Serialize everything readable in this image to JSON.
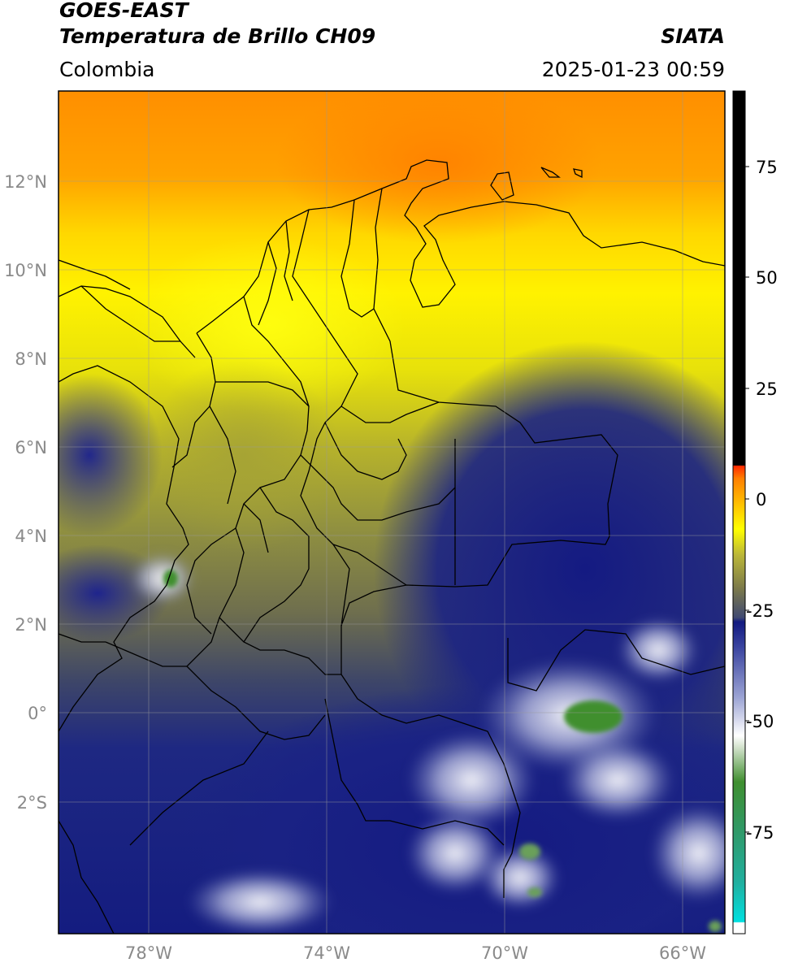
{
  "header": {
    "satellite": "GOES-EAST",
    "product": "Temperatura de Brillo CH09",
    "brand": "SIATA",
    "region": "Colombia",
    "datetime": "2025-01-23 00:59"
  },
  "map": {
    "lon_range": [
      -80,
      -65
    ],
    "lat_range": [
      -5,
      14
    ],
    "lat_ticks": [
      "12°N",
      "10°N",
      "8°N",
      "6°N",
      "4°N",
      "2°N",
      "0°",
      "2°S"
    ],
    "lon_ticks": [
      "78°W",
      "74°W",
      "70°W",
      "66°W"
    ]
  },
  "colorbar": {
    "range": [
      -100,
      90
    ],
    "tick_labels": [
      "75",
      "50",
      "25",
      "0",
      "-25",
      "-50",
      "-75"
    ],
    "colors": [
      "#ffffff",
      "#00d8d8",
      "#2f9a6a",
      "#3f8f2f",
      "#cfe0c8",
      "#ffffff",
      "#7c86c0",
      "#1d2587",
      "#121a80",
      "#404a72",
      "#7c7a4a",
      "#bcb838",
      "#ffff00",
      "#ffa000",
      "#ff2a00",
      "#000000"
    ]
  }
}
